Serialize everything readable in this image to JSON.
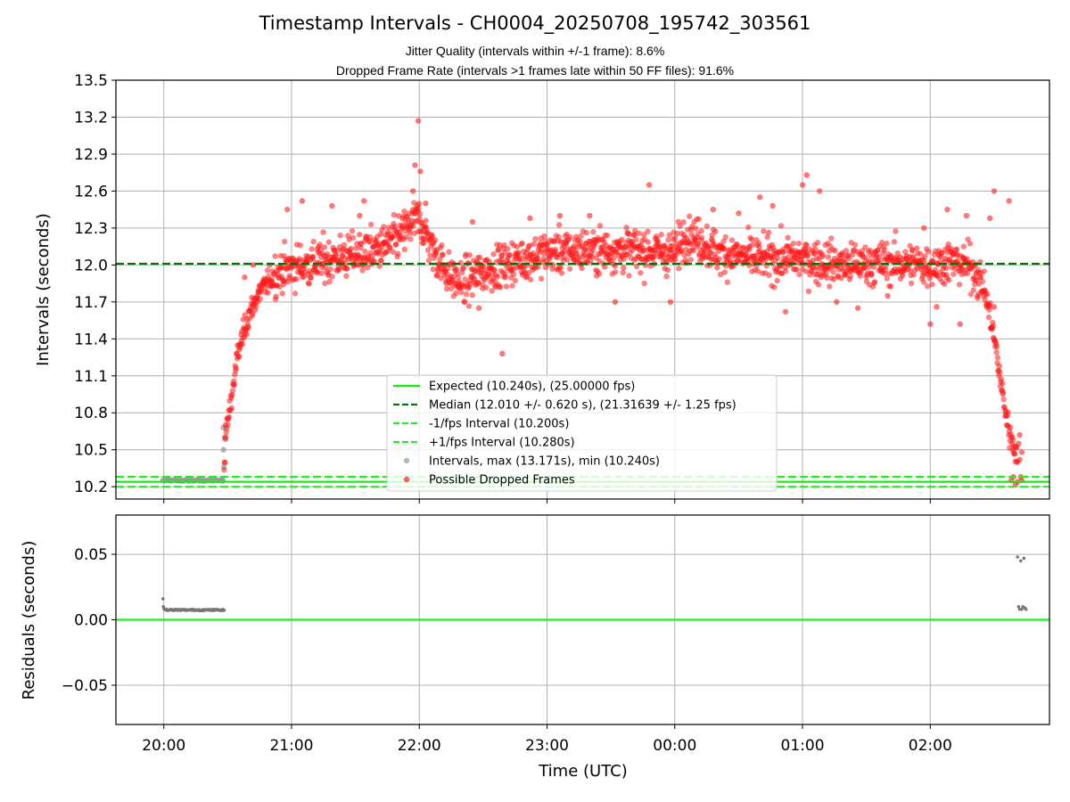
{
  "title": "Timestamp Intervals - CH0004_20250708_195742_303561",
  "subtitle_lines": [
    "Jitter Quality (intervals within +/-1 frame): 8.6%",
    "Dropped Frame Rate (intervals >1 frames late within 50 FF files): 91.6%"
  ],
  "colors": {
    "expected": "#11ee11",
    "median": "#007700",
    "fps_bounds": "#22ee22",
    "intervals": "#999999",
    "dropped": "#ff1a1a",
    "residuals": "#777777",
    "residual_zero": "#22ee22",
    "grid": "#b0b0b0"
  },
  "chart_data": [
    {
      "type": "scatter",
      "ylabel": "Intervals (seconds)",
      "ylim": [
        10.1,
        13.5
      ],
      "yticks": [
        10.2,
        10.5,
        10.8,
        11.1,
        11.4,
        11.7,
        12.0,
        12.3,
        12.6,
        12.9,
        13.2,
        13.5
      ],
      "ytick_labels": [
        "10.2",
        "10.5",
        "10.8",
        "11.1",
        "11.4",
        "11.7",
        "12.0",
        "12.3",
        "12.6",
        "12.9",
        "13.2",
        "13.5"
      ],
      "grid": true,
      "reference_lines": [
        {
          "label": "Expected (10.240s), (25.00000 fps)",
          "y": 10.24,
          "style": "solid"
        },
        {
          "label": "Median (12.010 +/- 0.620 s), (21.31639 +/- 1.25 fps)",
          "y": 12.01,
          "style": "dashed"
        },
        {
          "label": "-1/fps Interval (10.200s)",
          "y": 10.2,
          "style": "dashed"
        },
        {
          "label": "+1/fps Interval (10.280s)",
          "y": 10.28,
          "style": "dashed"
        }
      ],
      "series": [
        {
          "name": "Intervals, max (13.171s), min (10.240s)"
        },
        {
          "name": "Possible Dropped Frames"
        }
      ],
      "x_unit": "minutes since 19:00 UTC",
      "envelope": [
        [
          59.5,
          10.25
        ],
        [
          88,
          10.25
        ],
        [
          89,
          10.6
        ],
        [
          92,
          10.95
        ],
        [
          95,
          11.3
        ],
        [
          100,
          11.6
        ],
        [
          105,
          11.78
        ],
        [
          112,
          11.92
        ],
        [
          120,
          11.98
        ],
        [
          140,
          12.05
        ],
        [
          160,
          12.12
        ],
        [
          170,
          12.22
        ],
        [
          176,
          12.33
        ],
        [
          180,
          12.38
        ],
        [
          183,
          12.25
        ],
        [
          188,
          12.07
        ],
        [
          195,
          11.9
        ],
        [
          200,
          11.85
        ],
        [
          210,
          11.95
        ],
        [
          225,
          12.03
        ],
        [
          240,
          12.1
        ],
        [
          255,
          12.12
        ],
        [
          270,
          12.12
        ],
        [
          285,
          12.12
        ],
        [
          300,
          12.1
        ],
        [
          305,
          12.25
        ],
        [
          312,
          12.2
        ],
        [
          320,
          12.1
        ],
        [
          340,
          12.05
        ],
        [
          360,
          12.05
        ],
        [
          380,
          12.0
        ],
        [
          400,
          12.02
        ],
        [
          420,
          12.0
        ],
        [
          430,
          12.03
        ],
        [
          440,
          11.98
        ],
        [
          445,
          11.82
        ],
        [
          448,
          11.6
        ],
        [
          451,
          11.3
        ],
        [
          454,
          10.95
        ],
        [
          457,
          10.65
        ],
        [
          460,
          10.5
        ],
        [
          462,
          10.4
        ]
      ],
      "dropped_highlights": [
        [
          179.5,
          13.17
        ],
        [
          178,
          12.81
        ],
        [
          180.5,
          12.76
        ],
        [
          177,
          12.6
        ],
        [
          183,
          12.5
        ],
        [
          219,
          11.28
        ],
        [
          288,
          12.65
        ],
        [
          340,
          12.55
        ],
        [
          360,
          12.65
        ],
        [
          362,
          12.73
        ],
        [
          368,
          12.6
        ],
        [
          346,
          12.48
        ],
        [
          420,
          11.52
        ],
        [
          434,
          11.52
        ],
        [
          437,
          12.4
        ],
        [
          428,
          12.45
        ],
        [
          417,
          12.3
        ],
        [
          450,
          12.6
        ],
        [
          457,
          12.52
        ],
        [
          102,
          12.0
        ],
        [
          98,
          11.9
        ],
        [
          89,
          10.7
        ],
        [
          208,
          11.65
        ],
        [
          272,
          11.7
        ],
        [
          298,
          11.7
        ],
        [
          352,
          11.62
        ],
        [
          376,
          11.7
        ],
        [
          386,
          11.65
        ],
        [
          400,
          11.75
        ],
        [
          423,
          11.66
        ],
        [
          450,
          11.66
        ],
        [
          118,
          12.45
        ],
        [
          125,
          12.52
        ],
        [
          139,
          12.48
        ],
        [
          154,
          12.52
        ],
        [
          152,
          12.4
        ],
        [
          205,
          12.35
        ],
        [
          232,
          12.38
        ],
        [
          246,
          12.4
        ],
        [
          260,
          12.4
        ],
        [
          318,
          12.45
        ],
        [
          330,
          12.42
        ],
        [
          448,
          12.38
        ]
      ],
      "gray_highlights": [
        [
          88,
          10.68
        ],
        [
          88.5,
          10.6
        ],
        [
          88,
          10.5
        ],
        [
          88.2,
          10.36
        ],
        [
          87.5,
          10.26
        ]
      ],
      "tail_highlights": [
        [
          462,
          10.42
        ],
        [
          462.5,
          10.28
        ],
        [
          463,
          10.25
        ],
        [
          461,
          10.24
        ],
        [
          463,
          10.48
        ],
        [
          462,
          10.62
        ],
        [
          461.5,
          10.55
        ],
        [
          458,
          10.25
        ],
        [
          459,
          10.28
        ],
        [
          460,
          10.22
        ]
      ]
    },
    {
      "type": "scatter",
      "ylabel": "Residuals (seconds)",
      "xlabel": "Time (UTC)",
      "ylim": [
        -0.08,
        0.08
      ],
      "yticks": [
        -0.05,
        0.0,
        0.05
      ],
      "ytick_labels": [
        "−0.05",
        "0.00",
        "0.05"
      ],
      "grid": true,
      "zero_line": 0.0,
      "xlim": [
        37.5,
        476
      ],
      "xticks": [
        60,
        120,
        180,
        240,
        300,
        360,
        420
      ],
      "xtick_labels": [
        "20:00",
        "21:00",
        "22:00",
        "23:00",
        "00:00",
        "01:00",
        "02:00"
      ],
      "series": [
        {
          "name": "",
          "points": [
            [
              59.6,
              0.016
            ],
            [
              59.8,
              0.01
            ],
            [
              60.0,
              0.009
            ],
            [
              60.2,
              0.008
            ],
            [
              60.5,
              0.008
            ],
            [
              461.0,
              0.048
            ],
            [
              462.5,
              0.045
            ],
            [
              464.0,
              0.047
            ],
            [
              461.5,
              0.01
            ],
            [
              462.0,
              0.008
            ],
            [
              463.0,
              0.008
            ],
            [
              463.5,
              0.01
            ],
            [
              464.5,
              0.009
            ],
            [
              465.0,
              0.008
            ]
          ],
          "band": {
            "x_start": 61,
            "x_end": 88.5,
            "y": 0.0075
          }
        }
      ]
    }
  ]
}
